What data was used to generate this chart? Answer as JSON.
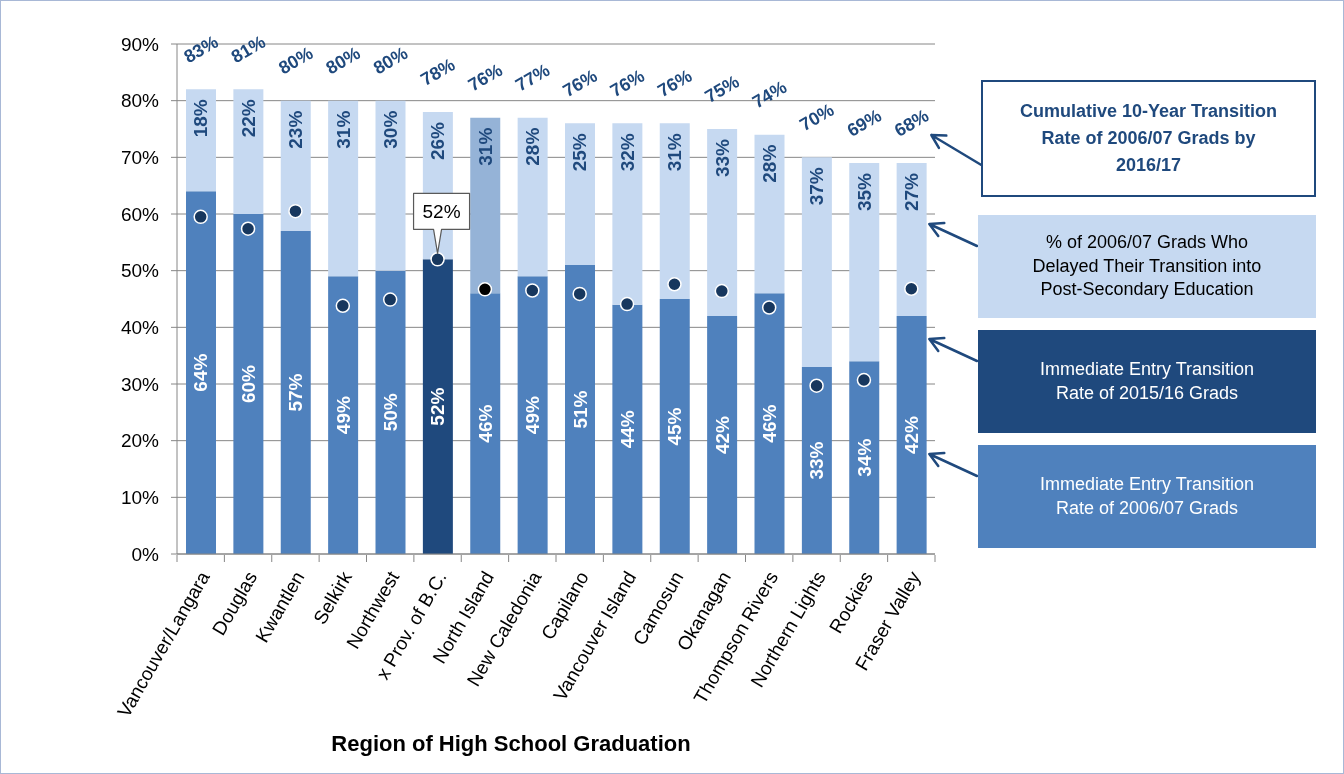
{
  "chart_data": {
    "type": "bar",
    "stacked": true,
    "xlabel": "Region of High School Graduation",
    "categories": [
      "Vancouver/Langara",
      "Douglas",
      "Kwantlen",
      "Selkirk",
      "Northwest",
      "x Prov. of B.C.",
      "North Island",
      "New Caledonia",
      "Capilano",
      "Vancouver Island",
      "Camosun",
      "Okanagan",
      "Thompson Rivers",
      "Northern Lights",
      "Rockies",
      "Fraser Valley"
    ],
    "series": [
      {
        "name": "Immediate Entry Transition Rate of 2006/07 Grads",
        "color": "#4f81bd",
        "colors": [
          "#4f81bd",
          "#4f81bd",
          "#4f81bd",
          "#4f81bd",
          "#4f81bd",
          "#1f497d",
          "#4f81bd",
          "#4f81bd",
          "#4f81bd",
          "#4f81bd",
          "#4f81bd",
          "#4f81bd",
          "#4f81bd",
          "#4f81bd",
          "#4f81bd",
          "#4f81bd"
        ],
        "values": [
          64,
          60,
          57,
          49,
          50,
          52,
          46,
          49,
          51,
          44,
          45,
          42,
          46,
          33,
          34,
          42
        ],
        "value_labels": [
          "64%",
          "60%",
          "57%",
          "49%",
          "50%",
          "52%",
          "46%",
          "49%",
          "51%",
          "44%",
          "45%",
          "42%",
          "46%",
          "33%",
          "34%",
          "42%"
        ]
      },
      {
        "name": "Immediate Entry Transition Rate of 2015/16 Grads",
        "type": "scatter",
        "color": "#1f497d",
        "colors": [
          "#17375e",
          "#17375e",
          "#17375e",
          "#17375e",
          "#17375e",
          "#17375e",
          "#000000",
          "#17375e",
          "#17375e",
          "#17375e",
          "#17375e",
          "#17375e",
          "#17375e",
          "#17375e",
          "#17375e",
          "#17375e"
        ],
        "x": [
          "Vancouver/Langara",
          "Douglas",
          "Kwantlen",
          "Selkirk",
          "Northwest",
          "x Prov. of B.C.",
          "North Island",
          "New Caledonia",
          "Capilano",
          "Vancouver Island",
          "Camosun",
          "Okanagan",
          "Thompson Rivers",
          "Northern Lights",
          "Rockies",
          "Fraser Valley"
        ],
        "values": [
          59.5,
          57.4,
          60.5,
          43.8,
          44.9,
          52,
          46.7,
          46.5,
          45.9,
          44.1,
          47.6,
          46.4,
          43.5,
          29.7,
          30.7,
          46.8
        ]
      },
      {
        "name": "% of 2006/07 Grads Who Delayed Their Transition into Post-Secondary Education",
        "color": "#c6d9f1",
        "colors": [
          "#c6d9f1",
          "#c6d9f1",
          "#c6d9f1",
          "#c6d9f1",
          "#c6d9f1",
          "#c6d9f1",
          "#95b3d7",
          "#c6d9f1",
          "#c6d9f1",
          "#c6d9f1",
          "#c6d9f1",
          "#c6d9f1",
          "#c6d9f1",
          "#c6d9f1",
          "#c6d9f1",
          "#c6d9f1"
        ],
        "values": [
          18,
          22,
          23,
          31,
          30,
          26,
          31,
          28,
          25,
          32,
          31,
          33,
          28,
          37,
          35,
          27
        ],
        "value_labels": [
          "18%",
          "22%",
          "23%",
          "31%",
          "30%",
          "26%",
          "31%",
          "28%",
          "25%",
          "32%",
          "31%",
          "33%",
          "28%",
          "37%",
          "35%",
          "27%"
        ]
      }
    ],
    "totals": [
      "83%",
      "81%",
      "80%",
      "80%",
      "80%",
      "78%",
      "76%",
      "77%",
      "76%",
      "76%",
      "76%",
      "75%",
      "74%",
      "70%",
      "69%",
      "68%"
    ],
    "annotations": [
      "Cumulative 10-Year Transition Rate of 2006/07 Grads by 2016/17",
      {
        "text": "52%",
        "x": "x Prov. of B.C.",
        "y": 52
      }
    ],
    "ylim": [
      0,
      90
    ],
    "yticks": [
      {
        "value": 0,
        "label": "0%"
      },
      {
        "value": 10,
        "label": "10%"
      },
      {
        "value": 20,
        "label": "20%"
      },
      {
        "value": 30,
        "label": "30%"
      },
      {
        "value": 40,
        "label": "40%"
      },
      {
        "value": 50,
        "label": "50%"
      },
      {
        "value": 60,
        "label": "60%"
      },
      {
        "value": 70,
        "label": "70%"
      },
      {
        "value": 80,
        "label": "80%"
      },
      {
        "value": 90,
        "label": "90%"
      }
    ],
    "grid": "y",
    "legend": "right",
    "marker": "circle"
  }
}
